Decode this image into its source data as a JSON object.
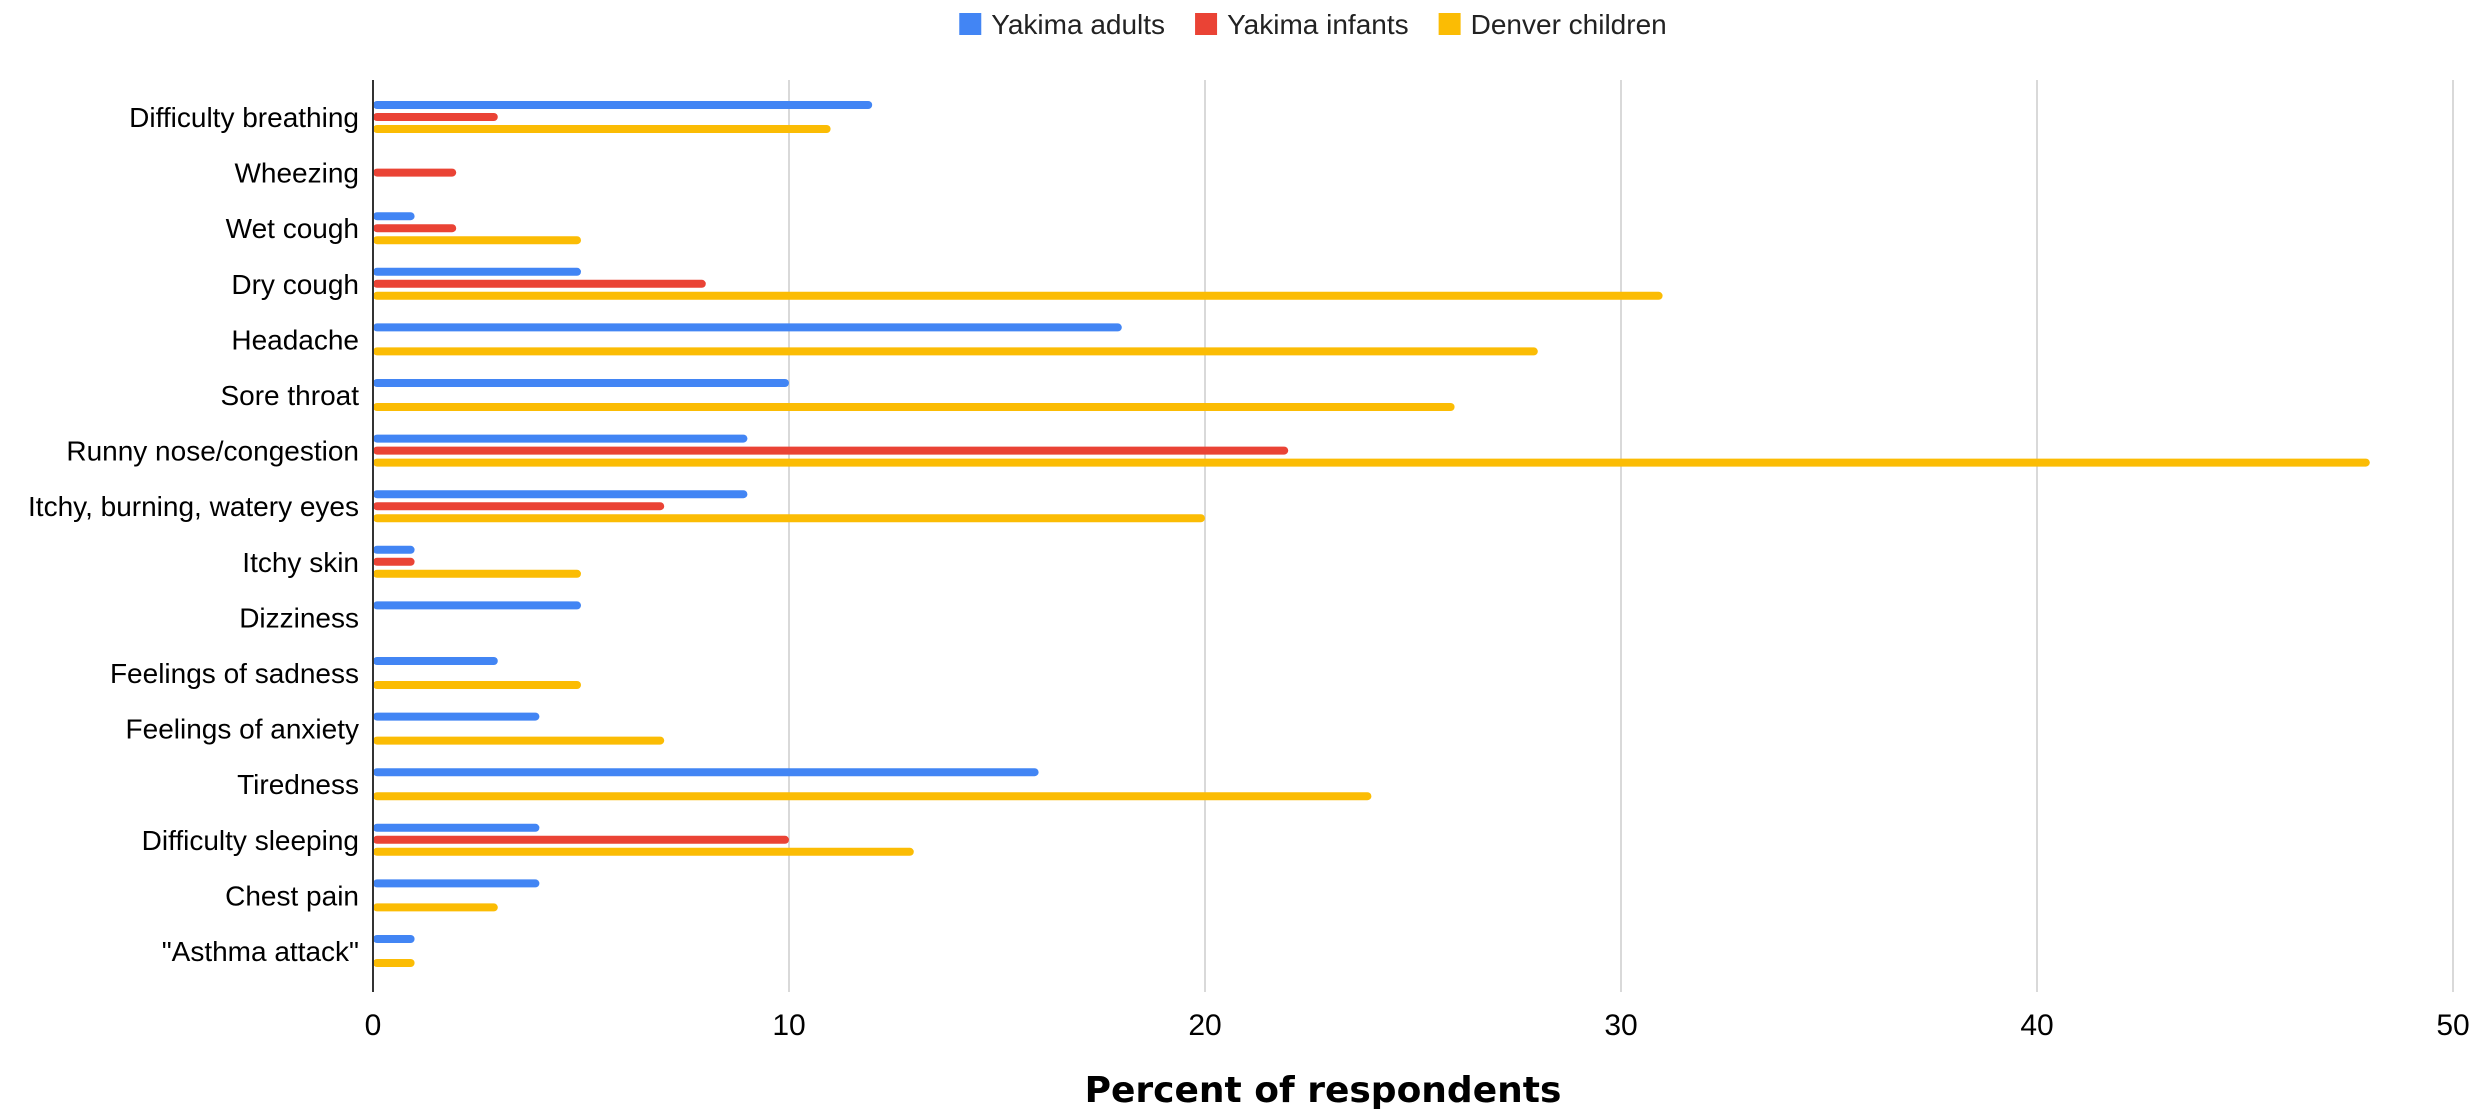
{
  "chart_data": {
    "type": "bar",
    "orientation": "horizontal",
    "title": "",
    "xlabel": "Percent of respondents",
    "ylabel": "",
    "xlim": [
      0,
      50
    ],
    "x_ticks": [
      0,
      10,
      20,
      30,
      40,
      50
    ],
    "grid": true,
    "legend_position": "top-center",
    "categories": [
      "Difficulty breathing",
      "Wheezing",
      "Wet cough",
      "Dry cough",
      "Headache",
      "Sore throat",
      "Runny nose/congestion",
      "Itchy, burning, watery eyes",
      "Itchy skin",
      "Dizziness",
      "Feelings of sadness",
      "Feelings of anxiety",
      "Tiredness",
      "Difficulty sleeping",
      "Chest pain",
      "\"Asthma attack\""
    ],
    "series": [
      {
        "name": "Yakima adults",
        "color": "#4285F4",
        "values": [
          12,
          0,
          1,
          5,
          18,
          10,
          9,
          9,
          1,
          5,
          3,
          4,
          16,
          4,
          4,
          1
        ]
      },
      {
        "name": "Yakima infants",
        "color": "#EA4335",
        "values": [
          3,
          2,
          2,
          8,
          0,
          0,
          22,
          7,
          1,
          0,
          0,
          0,
          0,
          10,
          0,
          0
        ]
      },
      {
        "name": "Denver children",
        "color": "#FBBC04",
        "values": [
          11,
          0,
          5,
          31,
          28,
          26,
          48,
          20,
          5,
          0,
          5,
          7,
          24,
          13,
          3,
          1
        ]
      }
    ]
  }
}
